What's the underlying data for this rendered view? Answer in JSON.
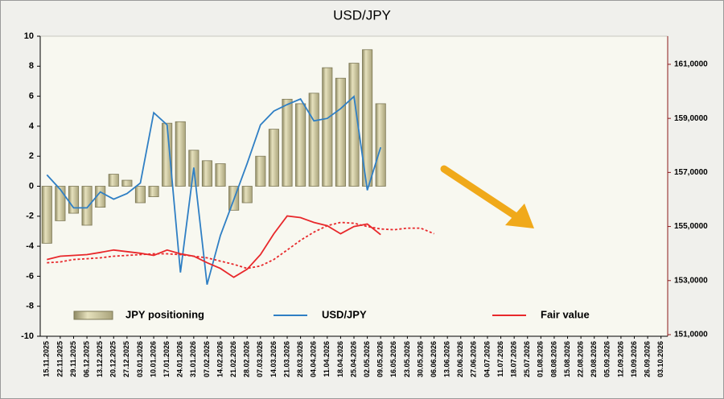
{
  "chart_data": {
    "type": "combo",
    "title": "USD/JPY",
    "categories": [
      "15.11.2025",
      "22.11.2025",
      "29.11.2025",
      "06.12.2025",
      "13.12.2025",
      "20.12.2025",
      "27.12.2025",
      "03.01.2026",
      "10.01.2026",
      "17.01.2026",
      "24.01.2026",
      "31.01.2026",
      "07.02.2026",
      "14.02.2026",
      "21.02.2026",
      "28.02.2026",
      "07.03.2026",
      "14.03.2026",
      "21.03.2026",
      "28.03.2026",
      "04.04.2026",
      "11.04.2026",
      "18.04.2026",
      "25.04.2026",
      "02.05.2026",
      "09.05.2026",
      "16.05.2026",
      "23.05.2026",
      "30.05.2026",
      "06.06.2026",
      "13.06.2026",
      "20.06.2026",
      "27.06.2026",
      "04.07.2026",
      "11.07.2026",
      "18.07.2026",
      "25.07.2026",
      "01.08.2026",
      "08.08.2026",
      "15.08.2026",
      "22.08.2026",
      "29.08.2026",
      "05.09.2026",
      "12.09.2026",
      "19.09.2026",
      "26.09.2026",
      "03.10.2026"
    ],
    "series": [
      {
        "name": "JPY positioning",
        "type": "bar",
        "color": "#c9c39a",
        "axis": "y",
        "values": [
          -3.8,
          -2.3,
          -1.8,
          -2.6,
          -1.4,
          0.8,
          0.4,
          -1.1,
          -0.7,
          4.2,
          4.3,
          2.4,
          1.7,
          1.5,
          -1.6,
          -1.1,
          2.0,
          3.8,
          5.8,
          5.5,
          6.2,
          7.9,
          7.2,
          8.2,
          9.1,
          5.5,
          null,
          null,
          null,
          null,
          null,
          null,
          null,
          null,
          null,
          null,
          null,
          null,
          null,
          null,
          null,
          null,
          null,
          null,
          null,
          null,
          null
        ]
      },
      {
        "name": "USD/JPY",
        "type": "line",
        "color": "#2f7fc4",
        "axis": "y2",
        "values": [
          156.91,
          156.37,
          155.69,
          155.69,
          156.28,
          156.01,
          156.22,
          156.61,
          159.21,
          158.76,
          153.3,
          157.18,
          152.85,
          154.67,
          155.99,
          157.33,
          158.76,
          159.27,
          159.51,
          159.72,
          158.91,
          159.0,
          159.36,
          159.81,
          156.34,
          157.93,
          null,
          null,
          null,
          null,
          null,
          null,
          null,
          null,
          null,
          null,
          null,
          null,
          null,
          null,
          null,
          null,
          null,
          null,
          null,
          null,
          null
        ]
      },
      {
        "name": "Fair value",
        "type": "line",
        "color": "#e8282b",
        "axis": "y2",
        "values": [
          153.78,
          153.9,
          153.93,
          153.96,
          154.04,
          154.13,
          154.07,
          154.01,
          153.93,
          154.13,
          153.99,
          153.9,
          153.66,
          153.45,
          153.12,
          153.42,
          153.96,
          154.73,
          155.39,
          155.33,
          155.15,
          155.03,
          154.73,
          155.0,
          155.09,
          154.7,
          null,
          null,
          null,
          null,
          null,
          null,
          null,
          null,
          null,
          null,
          null,
          null,
          null,
          null,
          null,
          null,
          null,
          null,
          null,
          null,
          null
        ]
      },
      {
        "type": "line",
        "dashed": true,
        "color": "#e8282b",
        "axis": "y2",
        "values": [
          153.66,
          153.69,
          153.78,
          153.81,
          153.84,
          153.9,
          153.93,
          153.96,
          153.99,
          153.99,
          153.96,
          153.9,
          153.84,
          153.72,
          153.6,
          153.45,
          153.54,
          153.78,
          154.13,
          154.49,
          154.79,
          155.03,
          155.15,
          155.12,
          155.0,
          154.91,
          154.88,
          154.94,
          154.94,
          154.73,
          null,
          null,
          null,
          null,
          null,
          null,
          null,
          null,
          null,
          null,
          null,
          null,
          null,
          null,
          null,
          null,
          null
        ]
      }
    ],
    "ylim": [
      -10,
      10
    ],
    "yticks": [
      -10,
      -8,
      -6,
      -4,
      -2,
      0,
      2,
      4,
      6,
      8,
      10
    ],
    "y2lim": [
      150.94,
      162.04
    ],
    "y2ticks": [
      {
        "value": 151,
        "label": "151,0000"
      },
      {
        "value": 153,
        "label": "153,0000"
      },
      {
        "value": 155,
        "label": "155,0000"
      },
      {
        "value": 157,
        "label": "157,0000"
      },
      {
        "value": 159,
        "label": "159,0000"
      },
      {
        "value": 161,
        "label": "161,0000"
      }
    ],
    "legend": "lower center"
  }
}
